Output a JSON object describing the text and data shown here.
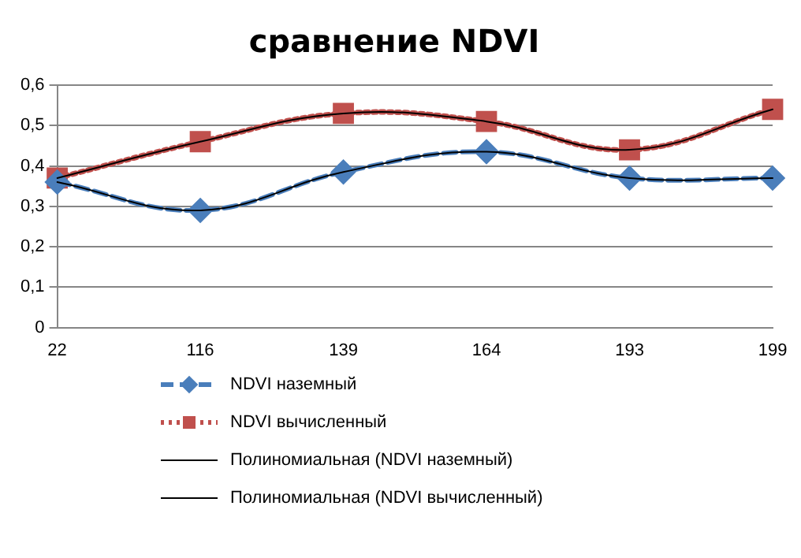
{
  "chart_data": {
    "type": "line",
    "title": "сравнение NDVI",
    "categories": [
      "22",
      "116",
      "139",
      "164",
      "193",
      "199"
    ],
    "series": [
      {
        "name": "NDVI наземный",
        "color": "#4a7ebb",
        "values": [
          0.36,
          0.29,
          0.385,
          0.435,
          0.37,
          0.37
        ],
        "marker": "diamond",
        "line_style": "dashed"
      },
      {
        "name": "NDVI вычисленный",
        "color": "#c0504d",
        "values": [
          0.37,
          0.46,
          0.53,
          0.51,
          0.44,
          0.54
        ],
        "marker": "square",
        "line_style": "dotted"
      },
      {
        "name": "Полиномиальная (NDVI наземный)",
        "color": "#000000",
        "values": [
          0.36,
          0.29,
          0.385,
          0.435,
          0.37,
          0.37
        ],
        "marker": "none",
        "line_style": "solid"
      },
      {
        "name": "Полиномиальная (NDVI вычисленный)",
        "color": "#000000",
        "values": [
          0.37,
          0.46,
          0.53,
          0.51,
          0.44,
          0.54
        ],
        "marker": "none",
        "line_style": "solid"
      }
    ],
    "ylim": [
      0,
      0.6
    ],
    "yticks": [
      {
        "value": 0,
        "label": "0"
      },
      {
        "value": 0.1,
        "label": "0,1"
      },
      {
        "value": 0.2,
        "label": "0,2"
      },
      {
        "value": 0.3,
        "label": "0,3"
      },
      {
        "value": 0.4,
        "label": "0,4"
      },
      {
        "value": 0.5,
        "label": "0,5"
      },
      {
        "value": 0.6,
        "label": "0,6"
      }
    ],
    "grid": "y",
    "legend": "bottom"
  }
}
